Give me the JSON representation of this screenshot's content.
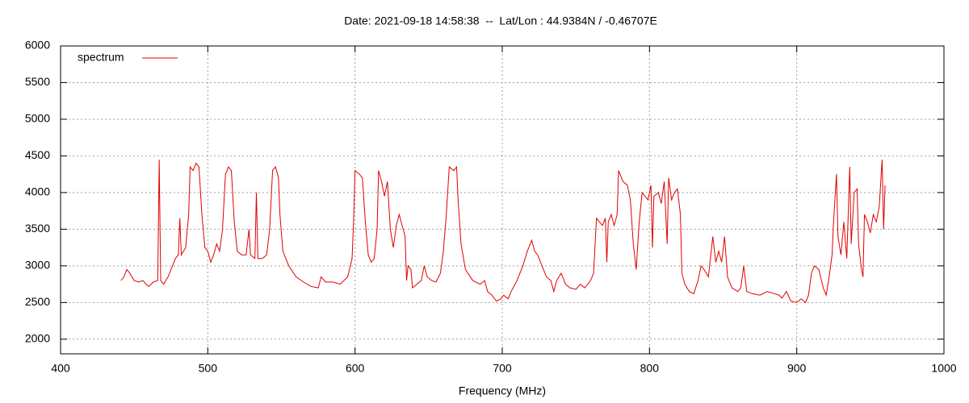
{
  "chart_data": {
    "type": "line",
    "title": "Date: 2021-09-18 14:58:38  --  Lat/Lon : 44.9384N / -0.46707E",
    "xlabel": "Frequency (MHz)",
    "xlim": [
      400,
      1000
    ],
    "xticks": [
      400,
      500,
      600,
      700,
      800,
      900,
      1000
    ],
    "ylim": [
      1800,
      6000
    ],
    "yticks": [
      2000,
      2500,
      3000,
      3500,
      4000,
      4500,
      5000,
      5500,
      6000
    ],
    "grid": true,
    "legend": "top-left",
    "series": [
      {
        "name": "spectrum",
        "color": "#e00000",
        "x": [
          441,
          443,
          445,
          447,
          450,
          453,
          456,
          458,
          460,
          463,
          466,
          467,
          468,
          470,
          473,
          476,
          478,
          480,
          481,
          482,
          485,
          487,
          488,
          490,
          492,
          494,
          496,
          498,
          500,
          502,
          504,
          506,
          508,
          510,
          512,
          514,
          516,
          518,
          520,
          523,
          526,
          528,
          529,
          532,
          533,
          534,
          537,
          540,
          542,
          544,
          546,
          548,
          549,
          551,
          555,
          560,
          565,
          570,
          575,
          577,
          580,
          585,
          590,
          595,
          598,
          599,
          600,
          603,
          605,
          607,
          609,
          611,
          613,
          615,
          616,
          618,
          620,
          622,
          624,
          626,
          628,
          630,
          632,
          634,
          635,
          636,
          638,
          639,
          642,
          645,
          647,
          649,
          652,
          655,
          658,
          660,
          662,
          664,
          667,
          669,
          670,
          672,
          675,
          680,
          685,
          688,
          690,
          693,
          696,
          699,
          701,
          704,
          706,
          710,
          714,
          717,
          720,
          722,
          724,
          727,
          730,
          733,
          735,
          737,
          740,
          743,
          746,
          750,
          753,
          756,
          760,
          762,
          764,
          766,
          768,
          770,
          771,
          772,
          774,
          776,
          778,
          779,
          782,
          785,
          787,
          789,
          791,
          793,
          795,
          797,
          799,
          801,
          802,
          803,
          806,
          808,
          810,
          812,
          813,
          815,
          817,
          819,
          821,
          822,
          824,
          827,
          830,
          833,
          835,
          837,
          840,
          843,
          845,
          847,
          849,
          851,
          853,
          856,
          860,
          862,
          864,
          866,
          870,
          875,
          880,
          885,
          888,
          890,
          893,
          896,
          900,
          903,
          906,
          908,
          910,
          912,
          915,
          918,
          920,
          922,
          924,
          925,
          927,
          928,
          930,
          932,
          934,
          936,
          937,
          939,
          941,
          942,
          944,
          945,
          946,
          948,
          950,
          952,
          954,
          956,
          958,
          959,
          960
        ],
        "values": [
          2800,
          2850,
          2950,
          2900,
          2800,
          2780,
          2800,
          2750,
          2720,
          2780,
          2800,
          4450,
          2800,
          2750,
          2850,
          3000,
          3100,
          3150,
          3650,
          3150,
          3250,
          3700,
          4350,
          4300,
          4400,
          4350,
          3700,
          3250,
          3200,
          3050,
          3150,
          3300,
          3200,
          3500,
          4250,
          4350,
          4300,
          3600,
          3200,
          3150,
          3150,
          3500,
          3150,
          3100,
          4000,
          3100,
          3100,
          3150,
          3500,
          4300,
          4350,
          4200,
          3700,
          3200,
          3000,
          2850,
          2780,
          2720,
          2700,
          2850,
          2780,
          2780,
          2750,
          2850,
          3100,
          3600,
          4300,
          4250,
          4200,
          3600,
          3150,
          3050,
          3100,
          3500,
          4300,
          4150,
          3950,
          4150,
          3500,
          3250,
          3550,
          3700,
          3550,
          3400,
          2800,
          3000,
          2950,
          2700,
          2750,
          2800,
          3000,
          2850,
          2800,
          2780,
          2900,
          3200,
          3700,
          4350,
          4300,
          4350,
          3900,
          3300,
          2950,
          2800,
          2750,
          2800,
          2650,
          2600,
          2520,
          2550,
          2600,
          2550,
          2650,
          2800,
          3000,
          3200,
          3350,
          3200,
          3150,
          3000,
          2850,
          2800,
          2650,
          2800,
          2900,
          2750,
          2700,
          2680,
          2750,
          2700,
          2800,
          2900,
          3650,
          3600,
          3550,
          3650,
          3050,
          3600,
          3700,
          3550,
          3700,
          4300,
          4150,
          4100,
          3900,
          3300,
          2950,
          3600,
          4000,
          3950,
          3900,
          4100,
          3250,
          3950,
          4000,
          3850,
          4150,
          3300,
          4200,
          3900,
          4000,
          4050,
          3700,
          2900,
          2750,
          2650,
          2620,
          2800,
          3000,
          2950,
          2850,
          3400,
          3050,
          3200,
          3050,
          3400,
          2850,
          2700,
          2650,
          2700,
          3000,
          2650,
          2620,
          2600,
          2650,
          2620,
          2600,
          2560,
          2650,
          2520,
          2500,
          2550,
          2500,
          2600,
          2900,
          3000,
          2950,
          2700,
          2600,
          2850,
          3150,
          3600,
          4250,
          3400,
          3150,
          3600,
          3100,
          4350,
          3300,
          4000,
          4050,
          3300,
          2950,
          2850,
          3700,
          3600,
          3450,
          3700,
          3600,
          3800,
          4450,
          3500,
          4100
        ]
      }
    ]
  }
}
